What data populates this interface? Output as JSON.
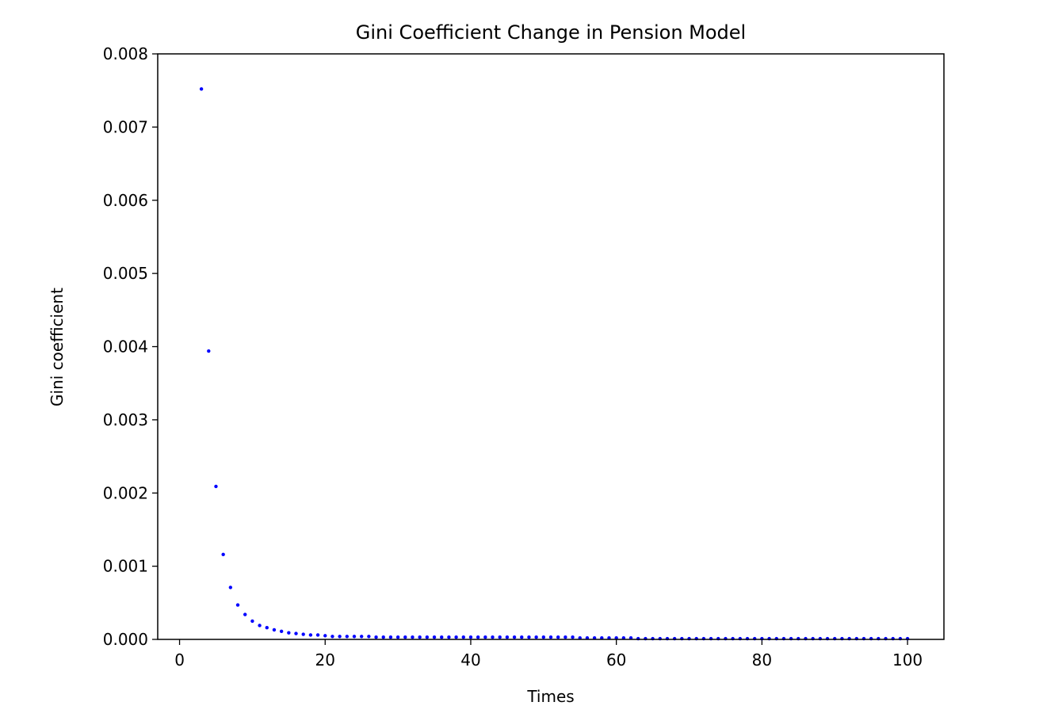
{
  "chart_data": {
    "type": "scatter",
    "title": "Gini Coefficient Change in Pension Model",
    "xlabel": "Times",
    "ylabel": "Gini coefficient",
    "xlim": [
      -3,
      105
    ],
    "ylim": [
      0,
      0.008
    ],
    "x_ticks": [
      0,
      20,
      40,
      60,
      80,
      100
    ],
    "y_ticks": [
      0.0,
      0.001,
      0.002,
      0.003,
      0.004,
      0.005,
      0.006,
      0.007,
      0.008
    ],
    "x_tick_labels": [
      "0",
      "20",
      "40",
      "60",
      "80",
      "100"
    ],
    "y_tick_labels": [
      "0.000",
      "0.001",
      "0.002",
      "0.003",
      "0.004",
      "0.005",
      "0.006",
      "0.007",
      "0.008"
    ],
    "grid": false,
    "marker_color": "#0000ff",
    "series": [
      {
        "x": [
          3,
          4,
          5,
          6,
          7,
          8,
          9,
          10,
          11,
          12,
          13,
          14,
          15,
          16,
          17,
          18,
          19,
          20,
          21,
          22,
          23,
          24,
          25,
          26,
          27,
          28,
          29,
          30,
          31,
          32,
          33,
          34,
          35,
          36,
          37,
          38,
          39,
          40,
          41,
          42,
          43,
          44,
          45,
          46,
          47,
          48,
          49,
          50,
          51,
          52,
          53,
          54,
          55,
          56,
          57,
          58,
          59,
          60,
          61,
          62,
          63,
          64,
          65,
          66,
          67,
          68,
          69,
          70,
          71,
          72,
          73,
          74,
          75,
          76,
          77,
          78,
          79,
          80,
          81,
          82,
          83,
          84,
          85,
          86,
          87,
          88,
          89,
          90,
          91,
          92,
          93,
          94,
          95,
          96,
          97,
          98,
          99,
          100
        ],
        "y": [
          0.00752,
          0.00394,
          0.00209,
          0.00116,
          0.00071,
          0.00047,
          0.00034,
          0.00025,
          0.00019,
          0.00016,
          0.00013,
          0.00011,
          9e-05,
          8e-05,
          7e-05,
          6e-05,
          6e-05,
          5e-05,
          4e-05,
          4e-05,
          4e-05,
          4e-05,
          4e-05,
          4e-05,
          3e-05,
          3e-05,
          3e-05,
          3e-05,
          3e-05,
          3e-05,
          3e-05,
          3e-05,
          3e-05,
          3e-05,
          3e-05,
          3e-05,
          3e-05,
          3e-05,
          3e-05,
          3e-05,
          3e-05,
          3e-05,
          3e-05,
          3e-05,
          3e-05,
          3e-05,
          3e-05,
          3e-05,
          3e-05,
          3e-05,
          3e-05,
          3e-05,
          2e-05,
          2e-05,
          2e-05,
          2e-05,
          2e-05,
          2e-05,
          2e-05,
          2e-05,
          1e-05,
          1e-05,
          1e-05,
          1e-05,
          1e-05,
          1e-05,
          1e-05,
          1e-05,
          1e-05,
          1e-05,
          1e-05,
          1e-05,
          1e-05,
          1e-05,
          1e-05,
          1e-05,
          1e-05,
          1e-05,
          1e-05,
          1e-05,
          1e-05,
          1e-05,
          1e-05,
          1e-05,
          1e-05,
          1e-05,
          1e-05,
          1e-05,
          1e-05,
          1e-05,
          1e-05,
          1e-05,
          1e-05,
          1e-05,
          1e-05,
          1e-05,
          1e-05,
          1e-05
        ]
      }
    ]
  }
}
